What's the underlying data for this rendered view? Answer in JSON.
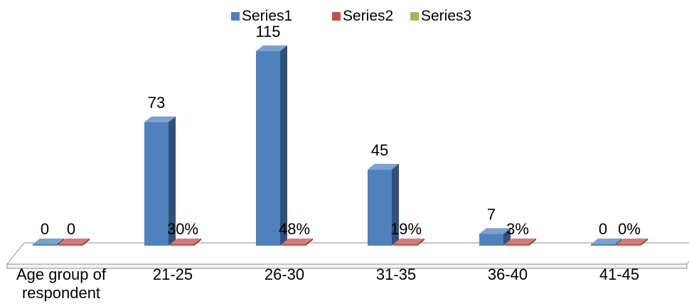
{
  "chart_data": {
    "type": "bar",
    "title": "",
    "xlabel": "",
    "ylabel": "",
    "categories": [
      "Age group of respondent",
      "21-25",
      "26-30",
      "31-35",
      "36-40",
      "41-45"
    ],
    "series": [
      {
        "name": "Series1",
        "color": "#4F81BD",
        "values": [
          0,
          73,
          115,
          45,
          7,
          0
        ],
        "labels": [
          "0",
          "73",
          "115",
          "45",
          "7",
          "0"
        ]
      },
      {
        "name": "Series2",
        "color": "#C0504D",
        "values": [
          0,
          0.3,
          0.48,
          0.19,
          0.03,
          0
        ],
        "labels": [
          "0",
          "30%",
          "48%",
          "19%",
          "3%",
          "0%"
        ]
      },
      {
        "name": "Series3",
        "color": "#9BBB59",
        "values": [
          null,
          null,
          null,
          null,
          null,
          null
        ],
        "labels": []
      }
    ],
    "ylim": [
      0,
      115
    ],
    "grid": false,
    "legend": "top-center",
    "three_d": true
  }
}
